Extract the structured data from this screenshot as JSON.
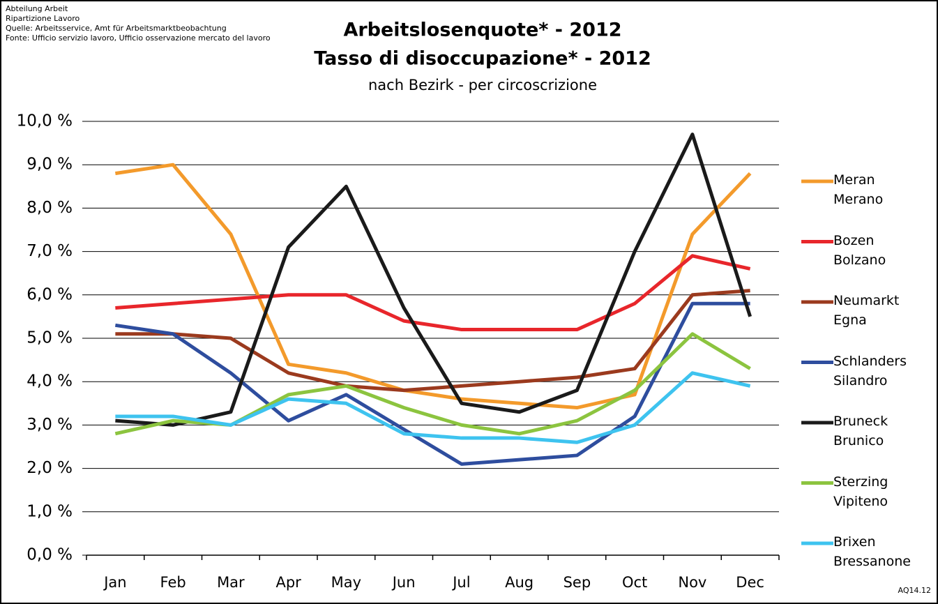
{
  "header": [
    "Abteilung Arbeit",
    "Ripartizione Lavoro",
    "Quelle: Arbeitsservice, Amt für Arbeitsmarktbeobachtung",
    "Fonte: Ufficio servizio lavoro, Ufficio osservazione mercato del lavoro"
  ],
  "code": "AQ14.12",
  "chart_data": {
    "type": "line",
    "title": [
      "Arbeitslosenquote* - 2012",
      "Tasso di disoccupazione* - 2012"
    ],
    "subtitle": "nach Bezirk - per circoscrizione",
    "categories": [
      "Jan",
      "Feb",
      "Mar",
      "Apr",
      "May",
      "Jun",
      "Jul",
      "Aug",
      "Sep",
      "Oct",
      "Nov",
      "Dec"
    ],
    "ylim": [
      0,
      10
    ],
    "yticks": [
      {
        "value": 0,
        "label": "0,0 %"
      },
      {
        "value": 1,
        "label": "1,0 %"
      },
      {
        "value": 2,
        "label": "2,0 %"
      },
      {
        "value": 3,
        "label": "3,0 %"
      },
      {
        "value": 4,
        "label": "4,0 %"
      },
      {
        "value": 5,
        "label": "5,0 %"
      },
      {
        "value": 6,
        "label": "6,0 %"
      },
      {
        "value": 7,
        "label": "7,0 %"
      },
      {
        "value": 8,
        "label": "8,0 %"
      },
      {
        "value": 9,
        "label": "9,0 %"
      },
      {
        "value": 10,
        "label": "10,0 %"
      }
    ],
    "grid": true,
    "legend": "right",
    "series": [
      {
        "name": "Meran Merano",
        "color": "#f39a2b",
        "values": [
          8.8,
          9.0,
          7.4,
          4.4,
          4.2,
          3.8,
          3.6,
          3.5,
          3.4,
          3.7,
          7.4,
          8.8
        ]
      },
      {
        "name": "Bozen Bolzano",
        "color": "#e8262b",
        "values": [
          5.7,
          5.8,
          5.9,
          6.0,
          6.0,
          5.4,
          5.2,
          5.2,
          5.2,
          5.8,
          6.9,
          6.6
        ]
      },
      {
        "name": "Neumarkt Egna",
        "color": "#9b3a1e",
        "values": [
          5.1,
          5.1,
          5.0,
          4.2,
          3.9,
          3.8,
          3.9,
          4.0,
          4.1,
          4.3,
          6.0,
          6.1
        ]
      },
      {
        "name": "Schlanders Silandro",
        "color": "#2e4d9e",
        "values": [
          5.3,
          5.1,
          4.2,
          3.1,
          3.7,
          2.9,
          2.1,
          2.2,
          2.3,
          3.2,
          5.8,
          5.8
        ]
      },
      {
        "name": "Bruneck Brunico",
        "color": "#1a1a1a",
        "values": [
          3.1,
          3.0,
          3.3,
          7.1,
          8.5,
          5.7,
          3.5,
          3.3,
          3.8,
          7.0,
          9.7,
          5.5
        ]
      },
      {
        "name": "Sterzing Vipiteno",
        "color": "#8cc43f",
        "values": [
          2.8,
          3.1,
          3.0,
          3.7,
          3.9,
          3.4,
          3.0,
          2.8,
          3.1,
          3.8,
          5.1,
          4.3
        ]
      },
      {
        "name": "Brixen Bressanone",
        "color": "#3ec3ef",
        "values": [
          3.2,
          3.2,
          3.0,
          3.6,
          3.5,
          2.8,
          2.7,
          2.7,
          2.6,
          3.0,
          4.2,
          3.9
        ]
      }
    ]
  }
}
